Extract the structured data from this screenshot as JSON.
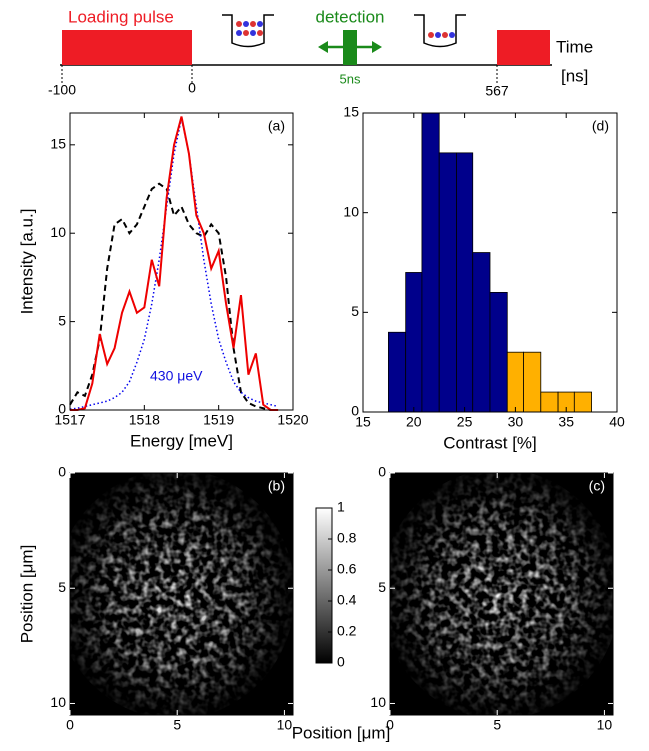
{
  "timeline": {
    "pulse_label": "Loading pulse",
    "detection_label": "detection",
    "pulse_width_label": "5ns",
    "axis_label": "Time",
    "unit_label": "[ns]",
    "ticks": [
      "-100",
      "0",
      "567"
    ]
  },
  "images_xlabel": "Position [μm]",
  "chart_data": [
    {
      "type": "line",
      "panel_label": "(a)",
      "xlabel": "Energy [meV]",
      "ylabel": "Intensity [a.u.]",
      "xlim": [
        1517,
        1520
      ],
      "xticks": [
        1517,
        1518,
        1519,
        1520
      ],
      "ylim": [
        0,
        16.8
      ],
      "yticks": [
        0,
        5,
        10,
        15
      ],
      "annotation": "430 μeV",
      "annotation_color": "#1010e0",
      "x": [
        1517.0,
        1517.1,
        1517.2,
        1517.3,
        1517.4,
        1517.5,
        1517.6,
        1517.7,
        1517.8,
        1517.9,
        1518.0,
        1518.1,
        1518.2,
        1518.3,
        1518.4,
        1518.5,
        1518.6,
        1518.7,
        1518.8,
        1518.9,
        1519.0,
        1519.1,
        1519.2,
        1519.3,
        1519.4,
        1519.5,
        1519.6,
        1519.7,
        1519.8
      ],
      "series": [
        {
          "color": "#000000",
          "style": "dashed",
          "values": [
            0.3,
            1,
            0.8,
            2,
            4,
            8,
            10.5,
            10.8,
            10,
            10.5,
            11.5,
            12.5,
            12.8,
            12.5,
            11,
            11.5,
            10.5,
            10,
            9.8,
            10.5,
            10,
            7.5,
            3.5,
            1,
            0.4,
            0.2,
            0.1,
            0,
            0
          ]
        },
        {
          "color": "#0000ee",
          "style": "dotted",
          "values": [
            0.05,
            0.1,
            0.2,
            0.3,
            0.4,
            0.5,
            0.7,
            1,
            1.6,
            2.7,
            4,
            6,
            8.5,
            11.5,
            14.5,
            16.5,
            14.5,
            11.5,
            8.5,
            6,
            4,
            2.7,
            1.6,
            1,
            0.7,
            0.5,
            0.4,
            0.3,
            0.2
          ]
        },
        {
          "color": "#ee0000",
          "style": "solid",
          "values": [
            0,
            0,
            0.1,
            1.5,
            4.3,
            2.6,
            3.5,
            5.5,
            6.7,
            5.5,
            5.8,
            8.5,
            7,
            12,
            15,
            16.6,
            14.5,
            11,
            10,
            8,
            9,
            6,
            3.5,
            6.5,
            2,
            3.2,
            0.3,
            0,
            0
          ]
        }
      ]
    },
    {
      "type": "histogram",
      "panel_label": "(d)",
      "xlabel": "Contrast [%]",
      "xlim": [
        15,
        40
      ],
      "xticks": [
        15,
        20,
        25,
        30,
        35,
        40
      ],
      "ylim": [
        0,
        15
      ],
      "yticks": [
        0,
        5,
        10,
        15
      ],
      "bins": [
        17.5,
        19.2,
        20.8,
        22.5,
        24.2,
        25.8,
        27.5,
        29.2,
        30.8,
        32.5,
        34.2,
        35.8,
        37.5
      ],
      "values": [
        4,
        7,
        15,
        13,
        13,
        8,
        6,
        3,
        3,
        1,
        1,
        1
      ],
      "colors": [
        "#00008b",
        "#00008b",
        "#00008b",
        "#00008b",
        "#00008b",
        "#00008b",
        "#00008b",
        "#ffb000",
        "#ffb000",
        "#ffb000",
        "#ffb000",
        "#ffb000"
      ]
    },
    {
      "type": "image",
      "panel_label": "(b)",
      "ylabel": "Position [μm]",
      "y_inverted": true,
      "xlim": [
        0,
        10.4
      ],
      "xticks": [
        0,
        5,
        10
      ],
      "ylim": [
        0,
        10.5
      ],
      "yticks": [
        0,
        5,
        10
      ]
    },
    {
      "type": "image",
      "panel_label": "(c)",
      "y_inverted": true,
      "xlim": [
        0,
        10.4
      ],
      "xticks": [
        0,
        5,
        10
      ],
      "ylim": [
        0,
        10.5
      ],
      "yticks": [
        0,
        5,
        10
      ]
    },
    {
      "type": "colorbar",
      "ylim": [
        0,
        1
      ],
      "yticks": [
        0,
        0.2,
        0.4,
        0.6,
        0.8,
        1
      ]
    }
  ]
}
